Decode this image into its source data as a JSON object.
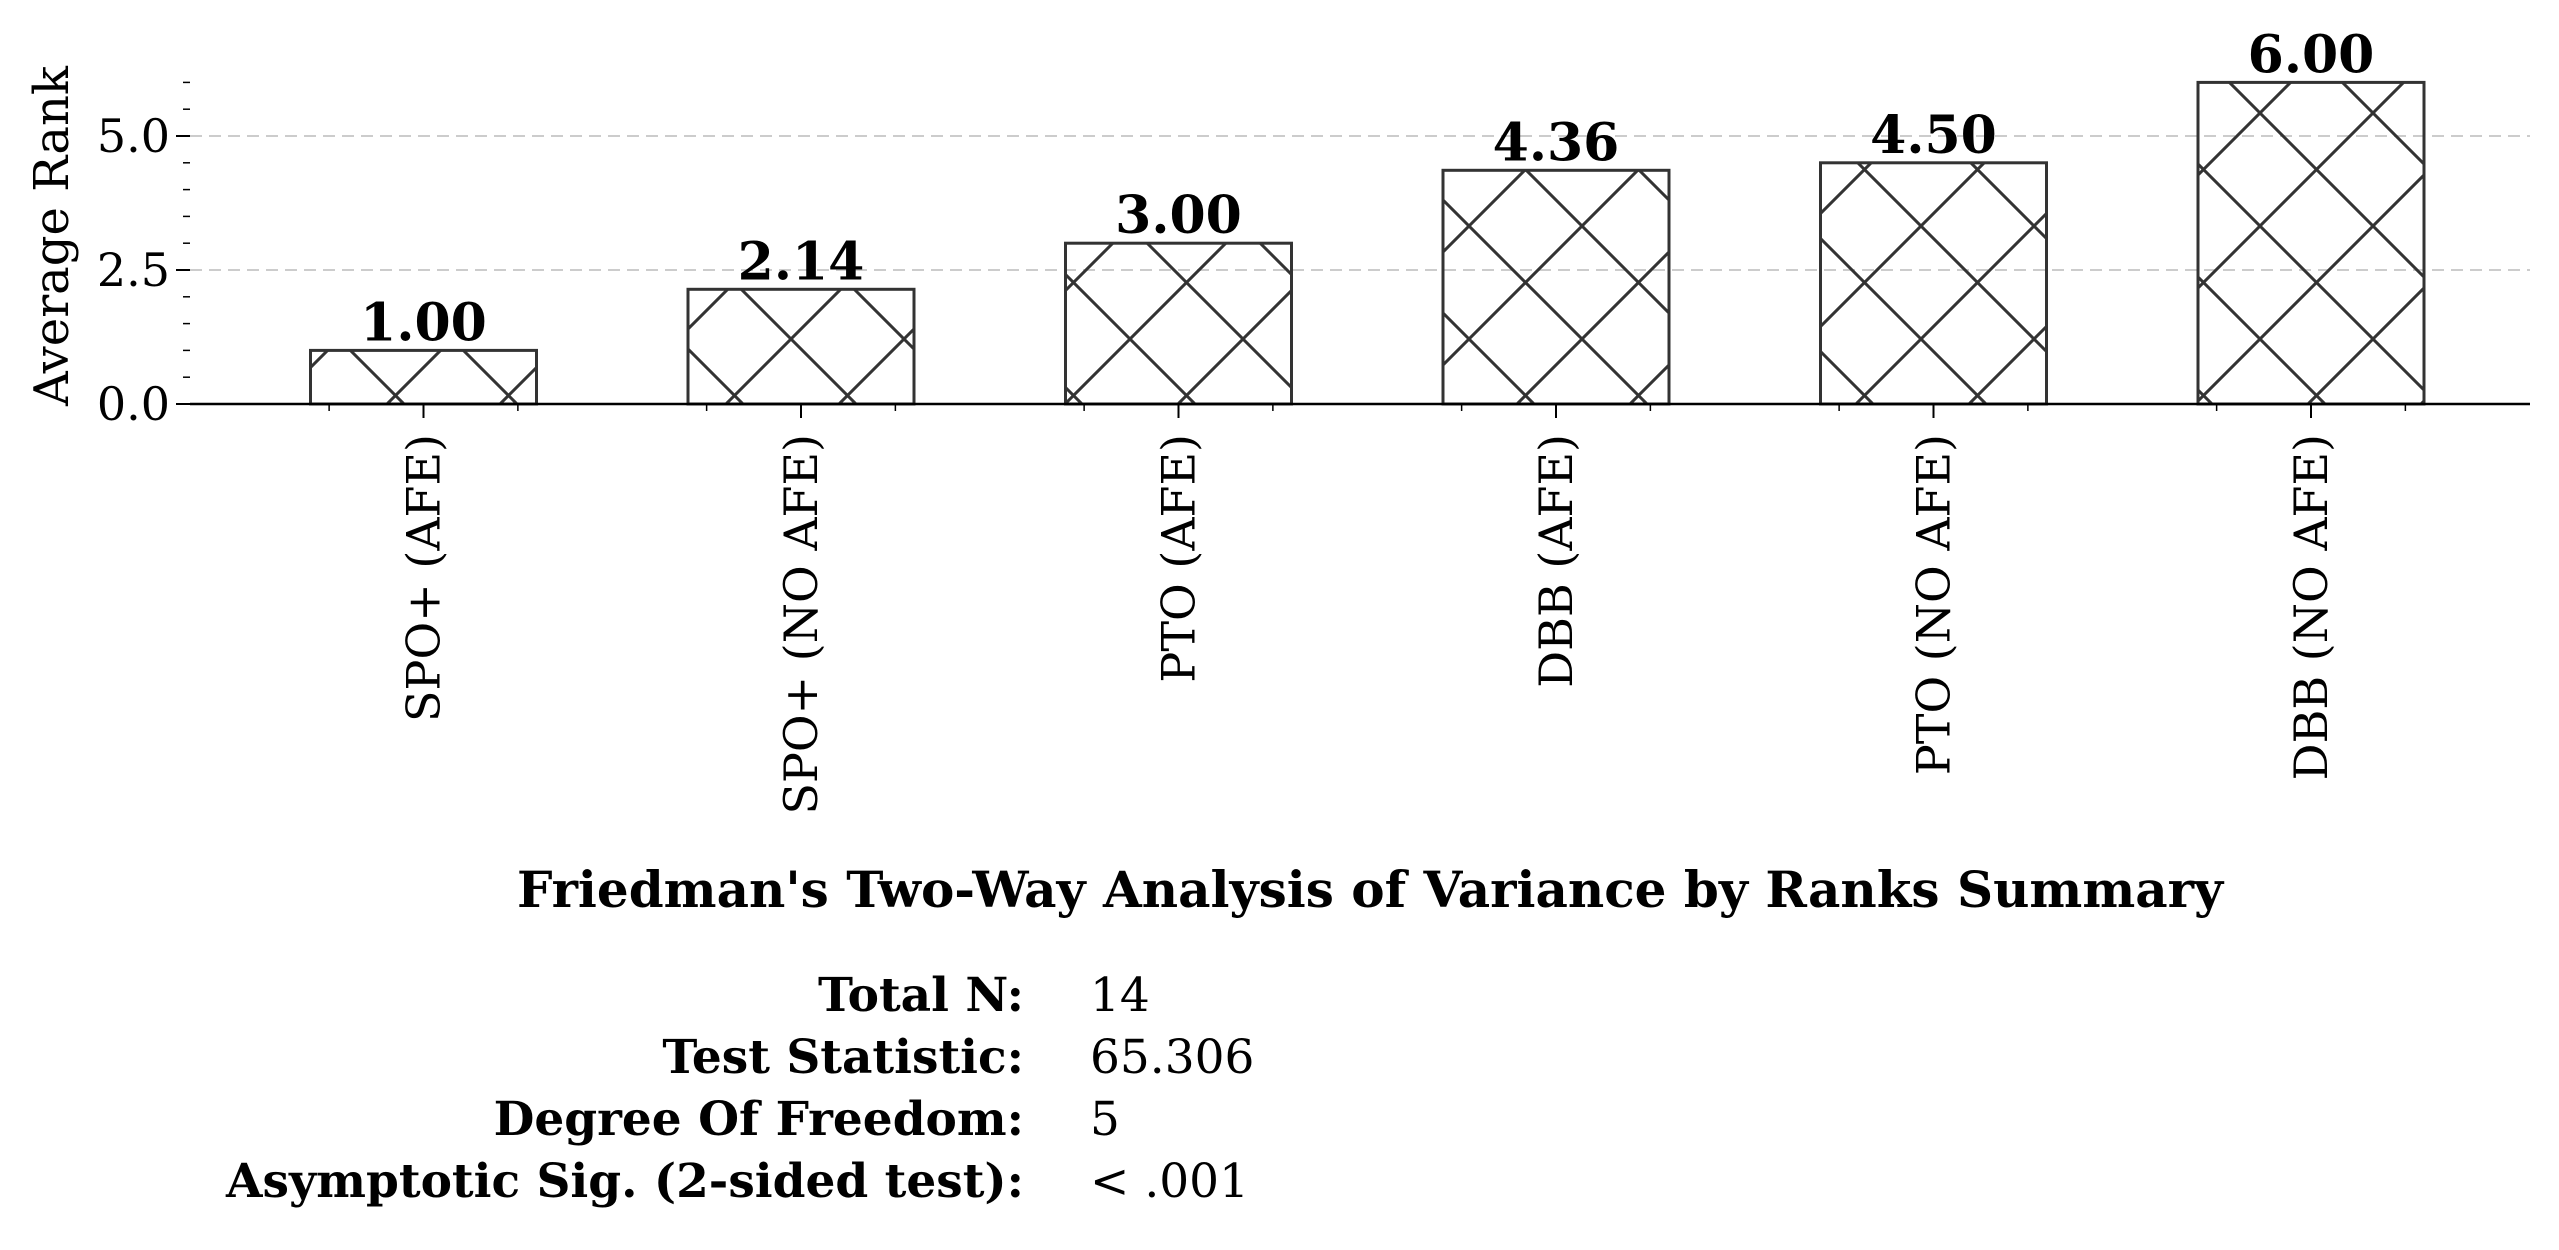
{
  "chart_data": {
    "type": "bar",
    "categories": [
      "SPO+ (AFE)",
      "SPO+ (NO AFE)",
      "PTO (AFE)",
      "DBB (AFE)",
      "PTO (NO AFE)",
      "DBB (NO AFE)"
    ],
    "values": [
      1.0,
      2.14,
      3.0,
      4.36,
      4.5,
      6.0
    ],
    "data_labels": [
      "1.00",
      "2.14",
      "3.00",
      "4.36",
      "4.50",
      "6.00"
    ],
    "ylabel": "Average Rank",
    "xlabel": "",
    "ylim": [
      0,
      6.1
    ],
    "yticks": [
      0.0,
      2.5,
      5.0
    ],
    "ytick_labels": [
      "0.0",
      "2.5",
      "5.0"
    ],
    "grid": "y-dashed",
    "bar_fill": "#ffffff",
    "bar_edge_color": "#333333",
    "hatch": "crosshatch-diagonal"
  },
  "summary": {
    "title": "Friedman's Two-Way Analysis of Variance by Ranks Summary",
    "rows": [
      {
        "label": "Total N:",
        "value": "14"
      },
      {
        "label": "Test Statistic:",
        "value": "65.306"
      },
      {
        "label": "Degree Of Freedom:",
        "value": "5"
      },
      {
        "label": "Asymptotic Sig. (2-sided test):",
        "value": "< .001"
      }
    ]
  }
}
